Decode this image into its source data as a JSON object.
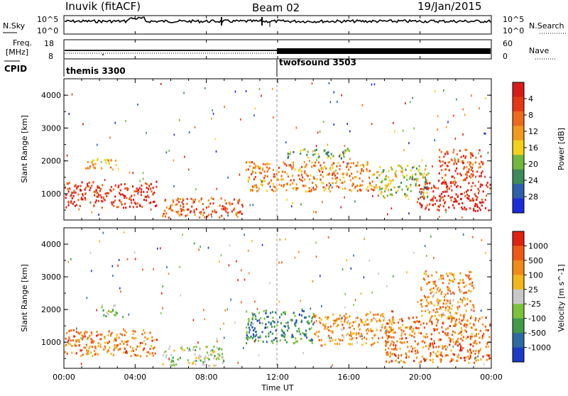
{
  "header": {
    "station": "Inuvik (fitACF)",
    "beam": "Beam 02",
    "date": "19/Jan/2015"
  },
  "nsky_panel": {
    "left_label": "N.Sky",
    "left_ticks": [
      "10^5",
      "10^0"
    ],
    "right_label": "N.Search",
    "right_ticks": [
      "10^5",
      "10^0"
    ]
  },
  "freq_panel": {
    "left_label_1": "Freq.",
    "left_label_2": "[MHz]",
    "left_ticks": [
      "18",
      "8"
    ],
    "right_label": "Nave",
    "right_ticks": [
      "60",
      "0"
    ]
  },
  "cpid": {
    "label": "CPID",
    "modes": [
      {
        "name": "themis 3300",
        "start_hour": 0
      },
      {
        "name": "twofsound 3503",
        "start_hour": 12
      }
    ]
  },
  "x_axis": {
    "label": "Time UT",
    "ticks": [
      "00:00",
      "04:00",
      "08:00",
      "12:00",
      "16:00",
      "20:00",
      "00:00"
    ],
    "range_hours": [
      0,
      24
    ]
  },
  "chart_data": [
    {
      "type": "heatmap",
      "title": "",
      "ylabel": "Slant Range [km]",
      "y_ticks": [
        "1000",
        "2000",
        "3000",
        "4000"
      ],
      "ylim": [
        200,
        4500
      ],
      "xlim_hours": [
        0,
        24
      ],
      "colorbar": {
        "label": "Power [dB]",
        "ticks": [
          "4",
          "8",
          "12",
          "16",
          "20",
          "24",
          "28"
        ],
        "colors": [
          "#1c2bd8",
          "#2f5fa8",
          "#3f8a5a",
          "#72b83e",
          "#f2d21a",
          "#f29a1e",
          "#ee6a1a",
          "#e63814",
          "#d81a1a"
        ]
      },
      "scatter_regions": [
        {
          "t0": 0.0,
          "t1": 5.2,
          "r0": 600,
          "r1": 1400,
          "level": 0.85
        },
        {
          "t0": 1.0,
          "t1": 3.0,
          "r0": 1800,
          "r1": 2100,
          "level": 0.6
        },
        {
          "t0": 5.5,
          "t1": 10.0,
          "r0": 300,
          "r1": 900,
          "level": 0.75
        },
        {
          "t0": 10.2,
          "t1": 17.5,
          "r0": 1100,
          "r1": 2000,
          "level": 0.65
        },
        {
          "t0": 12.5,
          "t1": 16.0,
          "r0": 2100,
          "r1": 2400,
          "level": 0.35
        },
        {
          "t0": 17.5,
          "t1": 20.5,
          "r0": 900,
          "r1": 1900,
          "level": 0.45
        },
        {
          "t0": 19.8,
          "t1": 24.0,
          "r0": 500,
          "r1": 1400,
          "level": 0.9
        },
        {
          "t0": 21.0,
          "t1": 23.5,
          "r0": 1400,
          "r1": 2400,
          "level": 0.8
        }
      ]
    },
    {
      "type": "heatmap",
      "title": "",
      "ylabel": "Slant Range [km]",
      "y_ticks": [
        "1000",
        "2000",
        "3000",
        "4000"
      ],
      "ylim": [
        200,
        4500
      ],
      "xlim_hours": [
        0,
        24
      ],
      "colorbar": {
        "label": "Velocity [m s^-1]",
        "ticks": [
          "1000",
          "500",
          "100",
          "25",
          "-25",
          "-100",
          "-500",
          "-1000"
        ],
        "colors": [
          "#1c3ac8",
          "#2d6aa0",
          "#3f9a4a",
          "#7cc23a",
          "#c8c8c8",
          "#f2b81a",
          "#f08a1a",
          "#ee5a14",
          "#e02010"
        ]
      },
      "scatter_regions": [
        {
          "t0": 0.0,
          "t1": 5.2,
          "r0": 600,
          "r1": 1400,
          "level": 0.75
        },
        {
          "t0": 2.0,
          "t1": 3.0,
          "r0": 1800,
          "r1": 2200,
          "level": 0.45
        },
        {
          "t0": 5.5,
          "t1": 9.0,
          "r0": 300,
          "r1": 900,
          "level": 0.45
        },
        {
          "t0": 10.2,
          "t1": 14.0,
          "r0": 1000,
          "r1": 2000,
          "level": 0.25
        },
        {
          "t0": 14.0,
          "t1": 18.5,
          "r0": 900,
          "r1": 1900,
          "level": 0.7
        },
        {
          "t0": 18.0,
          "t1": 24.0,
          "r0": 400,
          "r1": 1800,
          "level": 0.78
        },
        {
          "t0": 20.0,
          "t1": 23.0,
          "r0": 1800,
          "r1": 3200,
          "level": 0.7
        }
      ]
    }
  ]
}
